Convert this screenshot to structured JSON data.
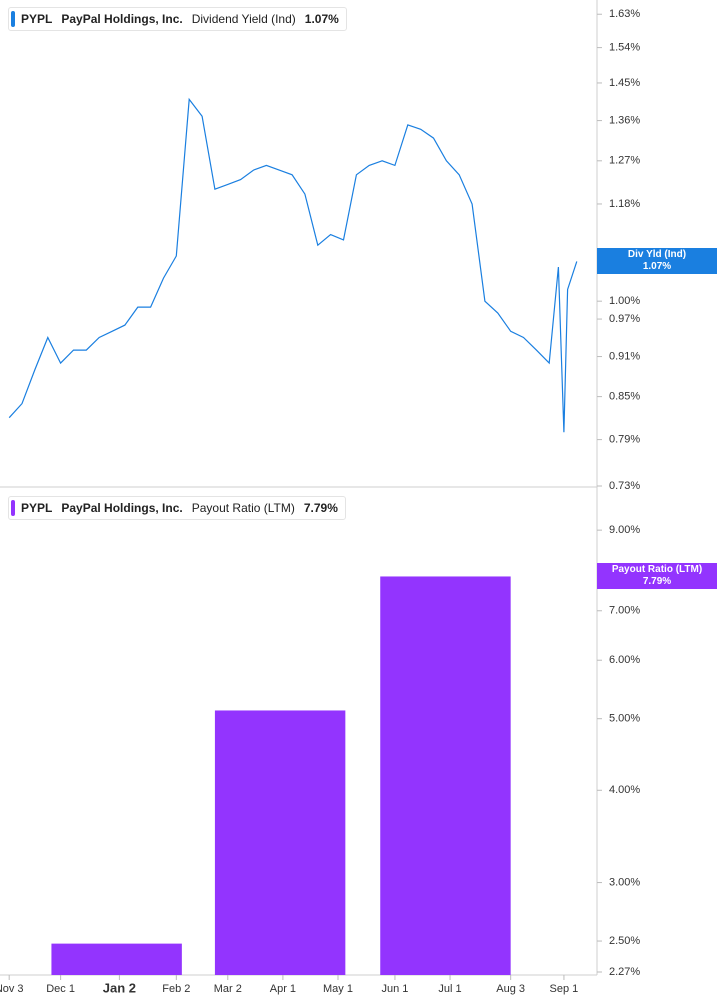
{
  "chart_data": [
    {
      "type": "line",
      "ticker": "PYPL",
      "company": "PayPal Holdings, Inc.",
      "axis_tag": "Div Yld (Ind)",
      "last_label": {
        "value": 1.07,
        "label": "1.07%"
      },
      "x": [
        "Nov 3",
        "Nov 10",
        "Nov 17",
        "Nov 24",
        "Dec 1",
        "Dec 8",
        "Dec 15",
        "Dec 22",
        "Dec 29",
        "Jan 5",
        "Jan 12",
        "Jan 19",
        "Jan 26",
        "Feb 2",
        "Feb 9",
        "Feb 16",
        "Feb 23",
        "Mar 2",
        "Mar 9",
        "Mar 16",
        "Mar 23",
        "Mar 30",
        "Apr 6",
        "Apr 13",
        "Apr 20",
        "Apr 27",
        "May 4",
        "May 11",
        "May 18",
        "May 25",
        "Jun 1",
        "Jun 8",
        "Jun 15",
        "Jun 22",
        "Jun 29",
        "Jul 6",
        "Jul 13",
        "Jul 20",
        "Jul 27",
        "Aug 3",
        "Aug 10",
        "Aug 17",
        "Aug 24",
        "Aug 29",
        "Sep 1",
        "Sep 3",
        "Sep 8"
      ],
      "series": [
        {
          "name": "Dividend Yield (Ind)",
          "color": "#1a7fe0",
          "values": [
            0.82,
            0.84,
            0.89,
            0.94,
            0.9,
            0.92,
            0.92,
            0.94,
            0.95,
            0.96,
            0.99,
            0.99,
            1.04,
            1.08,
            1.41,
            1.37,
            1.21,
            1.22,
            1.23,
            1.25,
            1.26,
            1.25,
            1.24,
            1.2,
            1.1,
            1.12,
            1.11,
            1.24,
            1.26,
            1.27,
            1.26,
            1.35,
            1.34,
            1.32,
            1.27,
            1.24,
            1.18,
            1.0,
            0.98,
            0.95,
            0.94,
            0.92,
            0.9,
            1.06,
            0.8,
            1.02,
            1.07
          ]
        }
      ],
      "xlim": [
        "Oct 29",
        "Sep 19"
      ],
      "log_scale": true,
      "ylim": [
        0.73,
        1.67
      ],
      "yticks": [
        {
          "value": 1.63,
          "label": "1.63%"
        },
        {
          "value": 1.54,
          "label": "1.54%"
        },
        {
          "value": 1.45,
          "label": "1.45%"
        },
        {
          "value": 1.36,
          "label": "1.36%"
        },
        {
          "value": 1.27,
          "label": "1.27%"
        },
        {
          "value": 1.18,
          "label": "1.18%"
        },
        {
          "value": 1.0,
          "label": "1.00%"
        },
        {
          "value": 0.97,
          "label": "0.97%"
        },
        {
          "value": 0.91,
          "label": "0.91%"
        },
        {
          "value": 0.85,
          "label": "0.85%"
        },
        {
          "value": 0.79,
          "label": "0.79%"
        },
        {
          "value": 0.73,
          "label": "0.73%"
        }
      ]
    },
    {
      "type": "bar",
      "ticker": "PYPL",
      "company": "PayPal Holdings, Inc.",
      "axis_tag": "Payout Ratio (LTM)",
      "last_label": {
        "value": 7.79,
        "label": "7.79%"
      },
      "x_start": [
        "Nov 26",
        "Feb 23",
        "May 24"
      ],
      "x_end": [
        "Feb 5",
        "May 5",
        "Aug 3"
      ],
      "series": [
        {
          "name": "Payout Ratio (LTM)",
          "color": "#9334fe",
          "values": [
            2.48,
            5.13,
            7.79
          ]
        }
      ],
      "xlim": [
        "Oct 29",
        "Sep 19"
      ],
      "xticks": [
        "Nov 3",
        "Dec 1",
        "Jan 2",
        "Feb 2",
        "Mar 2",
        "Apr 1",
        "May 1",
        "Jun 1",
        "Jul 1",
        "Aug 3",
        "Sep 1"
      ],
      "log_scale": true,
      "ylim": [
        2.27,
        10.2
      ],
      "yticks": [
        {
          "value": 9.0,
          "label": "9.00%"
        },
        {
          "value": 7.0,
          "label": "7.00%"
        },
        {
          "value": 6.0,
          "label": "6.00%"
        },
        {
          "value": 5.0,
          "label": "5.00%"
        },
        {
          "value": 4.0,
          "label": "4.00%"
        },
        {
          "value": 3.0,
          "label": "3.00%"
        },
        {
          "value": 2.5,
          "label": "2.50%"
        },
        {
          "value": 2.27,
          "label": "2.27%"
        }
      ]
    }
  ]
}
